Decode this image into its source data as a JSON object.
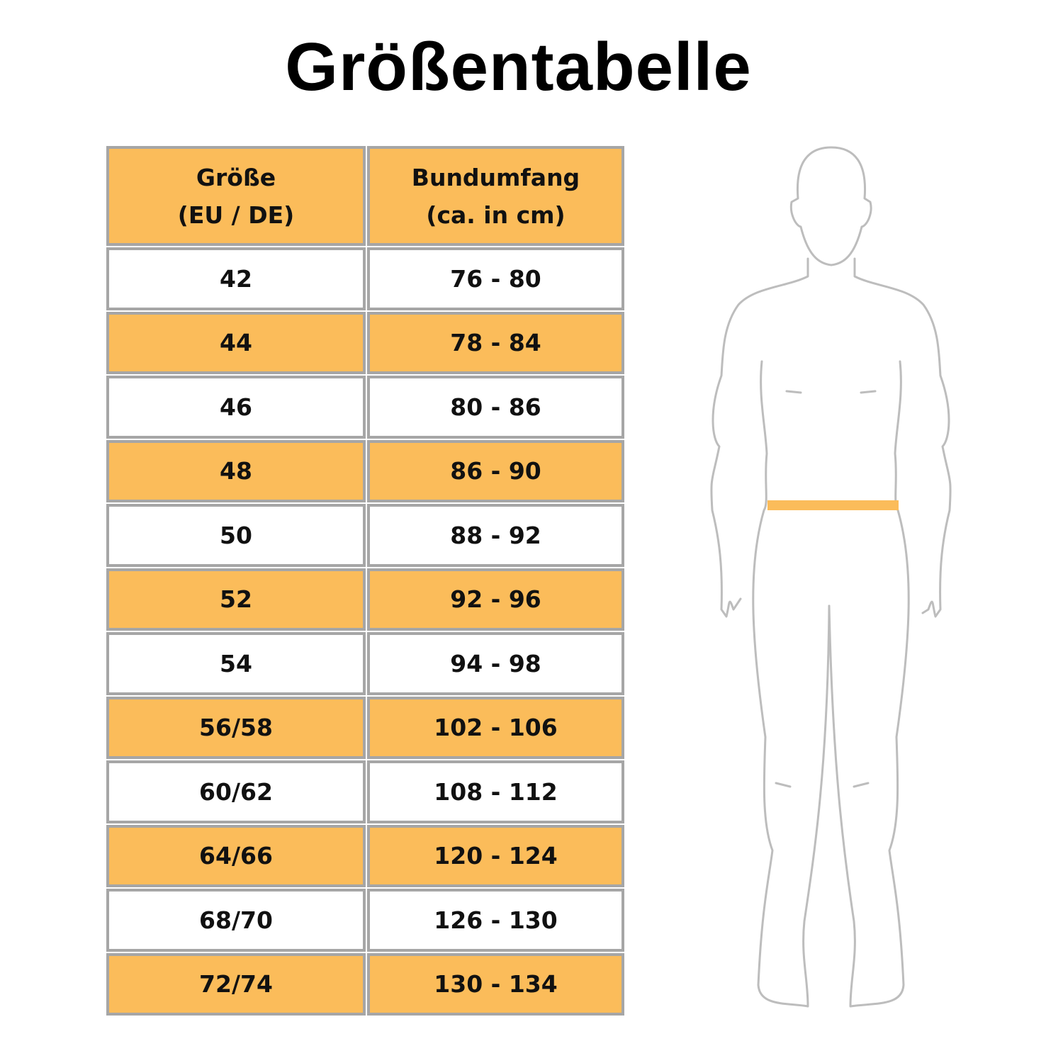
{
  "title": "Größentabelle",
  "table": {
    "headers": [
      {
        "line1": "Größe",
        "line2": "(EU / DE)"
      },
      {
        "line1": "Bundumfang",
        "line2": "(ca. in cm)"
      }
    ],
    "rows": [
      [
        "42",
        "76 - 80"
      ],
      [
        "44",
        "78 - 84"
      ],
      [
        "46",
        "80 - 86"
      ],
      [
        "48",
        "86 - 90"
      ],
      [
        "50",
        "88 - 92"
      ],
      [
        "52",
        "92 - 96"
      ],
      [
        "54",
        "94 - 98"
      ],
      [
        "56/58",
        "102 - 106"
      ],
      [
        "60/62",
        "108 - 112"
      ],
      [
        "64/66",
        "120 - 124"
      ],
      [
        "68/70",
        "126 - 130"
      ],
      [
        "72/74",
        "130 - 134"
      ]
    ]
  },
  "colors": {
    "header_fill": "#fbbc5a",
    "alt_row_fill": "#fbbc5a",
    "border": "#a6a6a6",
    "waist_marker": "#fbbc5a",
    "figure_outline": "#bdbdbd"
  },
  "figure": {
    "icon": "male-body-outline-icon",
    "highlight": "waist"
  }
}
